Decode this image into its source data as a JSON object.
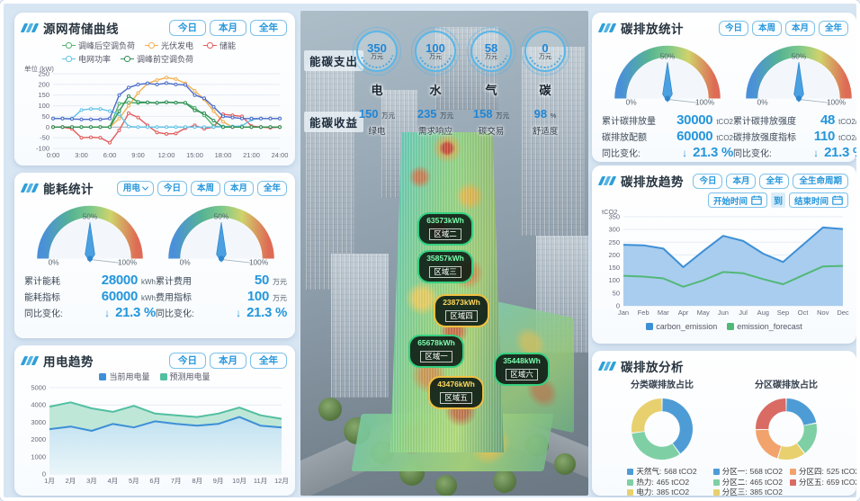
{
  "panels": {
    "curve": {
      "title": "源网荷储曲线",
      "buttons": [
        "今日",
        "本月",
        "全年"
      ],
      "unit_label": "单位 (kW)"
    },
    "energy": {
      "title": "能耗统计",
      "dropdown_label": "用电",
      "buttons": [
        "今日",
        "本周",
        "本月",
        "全年"
      ],
      "gauges": [
        {
          "pct": [
            "0%",
            "50%",
            "100%"
          ],
          "stats": [
            {
              "label": "累计能耗",
              "value": "28000",
              "unit": "kWh"
            },
            {
              "label": "能耗指标",
              "value": "60000",
              "unit": "kWh"
            }
          ],
          "change": {
            "label": "同比变化:",
            "arrow": "↓",
            "value": "21.3 %"
          }
        },
        {
          "pct": [
            "0%",
            "50%",
            "100%"
          ],
          "stats": [
            {
              "label": "累计费用",
              "value": "50",
              "unit": "万元"
            },
            {
              "label": "费用指标",
              "value": "100",
              "unit": "万元"
            }
          ],
          "change": {
            "label": "同比变化:",
            "arrow": "↓",
            "value": "21.3 %"
          }
        }
      ]
    },
    "usage": {
      "title": "用电趋势",
      "buttons": [
        "今日",
        "本月",
        "全年"
      ]
    },
    "carbon_stats": {
      "title": "碳排放统计",
      "buttons": [
        "今日",
        "本周",
        "本月",
        "全年"
      ],
      "gauges": [
        {
          "pct": [
            "0%",
            "50%",
            "100%"
          ],
          "stats": [
            {
              "label": "累计碳排放量",
              "value": "30000",
              "unit": "tCO2"
            },
            {
              "label": "碳排放配额",
              "value": "60000",
              "unit": "tCO2"
            }
          ],
          "change": {
            "label": "同比变化:",
            "arrow": "↓",
            "value": "21.3 %"
          }
        },
        {
          "pct": [
            "0%",
            "50%",
            "100%"
          ],
          "stats": [
            {
              "label": "累计碳排放强度",
              "value": "48",
              "unit": "tCO2/㎡"
            },
            {
              "label": "碳排放强度指标",
              "value": "110",
              "unit": "tCO2/㎡"
            }
          ],
          "change": {
            "label": "同比变化:",
            "arrow": "↓",
            "value": "21.3 %"
          }
        }
      ]
    },
    "carbon_trend": {
      "title": "碳排放趋势",
      "buttons": [
        "今日",
        "本月",
        "全年",
        "全生命周期"
      ],
      "date_start": "开始时间",
      "date_to": "到",
      "date_end": "结束时间",
      "ylabel": "tCO2"
    },
    "carbon_analysis": {
      "title": "碳排放分析",
      "left_title": "分类碳排放占比",
      "right_title": "分区碳排放占比",
      "left_legend": [
        {
          "label": "天然气:",
          "value": "568 tCO2",
          "color": "#4e9cd5"
        },
        {
          "label": "热力:",
          "value": "465 tCO2",
          "color": "#7fcfa5"
        },
        {
          "label": "电力:",
          "value": "385 tCO2",
          "color": "#e8d06e"
        }
      ],
      "right_legend_col1": [
        {
          "label": "分区一:",
          "value": "568 tCO2",
          "color": "#4e9cd5"
        },
        {
          "label": "分区二:",
          "value": "465 tCO2",
          "color": "#7fcfa5"
        },
        {
          "label": "分区三:",
          "value": "385 tCO2",
          "color": "#e8d06e"
        }
      ],
      "right_legend_col2": [
        {
          "label": "分区四:",
          "value": "525 tCO2",
          "color": "#f2a36c"
        },
        {
          "label": "分区五:",
          "value": "659 tCO2",
          "color": "#d96a64"
        }
      ]
    }
  },
  "center": {
    "expense_label": "能碳支出",
    "income_label": "能碳收益",
    "expense_items": [
      {
        "value": "350",
        "unit": "万元",
        "name": "电"
      },
      {
        "value": "100",
        "unit": "万元",
        "name": "水"
      },
      {
        "value": "58",
        "unit": "万元",
        "name": "气"
      },
      {
        "value": "0",
        "unit": "万元",
        "name": "碳"
      }
    ],
    "income_items": [
      {
        "value": "150",
        "unit": "万元",
        "name": "绿电"
      },
      {
        "value": "235",
        "unit": "万元",
        "name": "需求响应"
      },
      {
        "value": "158",
        "unit": "万元",
        "name": "碳交易"
      },
      {
        "value": "98",
        "unit": "%",
        "name": "舒适度"
      }
    ],
    "zone_badges": [
      {
        "value": "63573kWh",
        "name": "区域二",
        "color": "green"
      },
      {
        "value": "35857kWh",
        "name": "区域三",
        "color": "green"
      },
      {
        "value": "23873kWh",
        "name": "区域四",
        "color": "yellow"
      },
      {
        "value": "65678kWh",
        "name": "区域一",
        "color": "green"
      },
      {
        "value": "35448kWh",
        "name": "区域六",
        "color": "green"
      },
      {
        "value": "43476kWh",
        "name": "区域五",
        "color": "yellow"
      }
    ]
  },
  "chart_data": [
    {
      "id": "source_grid_curve",
      "type": "line",
      "title": "源网荷储曲线",
      "ylabel": "单位 (kW)",
      "ylim": [
        -100,
        250
      ],
      "yticks": [
        250,
        200,
        150,
        100,
        50,
        0,
        -50,
        -100
      ],
      "x": [
        0,
        1,
        2,
        3,
        4,
        5,
        6,
        7,
        8,
        9,
        10,
        11,
        12,
        13,
        14,
        15,
        16,
        17,
        18,
        19,
        20,
        21,
        22,
        23,
        24
      ],
      "xtick_labels": [
        "0:00",
        "3:00",
        "6:00",
        "9:00",
        "12:00",
        "15:00",
        "18:00",
        "21:00",
        "24:00"
      ],
      "series": [
        {
          "name": "调峰后空调负荷",
          "color": "#4db36a",
          "values": [
            0,
            0,
            0,
            0,
            0,
            0,
            0,
            110,
            115,
            113,
            115,
            113,
            116,
            115,
            113,
            90,
            55,
            5,
            0,
            0,
            0,
            0,
            0,
            0,
            0
          ]
        },
        {
          "name": "光伏发电",
          "color": "#f2b04e",
          "values": [
            0,
            0,
            0,
            0,
            0,
            0,
            0,
            40,
            100,
            160,
            205,
            220,
            232,
            225,
            205,
            170,
            130,
            75,
            25,
            0,
            0,
            0,
            0,
            0,
            0
          ]
        },
        {
          "name": "储能",
          "color": "#e25b5b",
          "values": [
            0,
            0,
            -8,
            -50,
            -48,
            -50,
            -73,
            -15,
            65,
            45,
            8,
            -25,
            -32,
            -30,
            -5,
            8,
            -8,
            0,
            60,
            55,
            50,
            5,
            0,
            -3,
            0
          ]
        },
        {
          "name": "电网功率",
          "color": "#62c3e8",
          "values": [
            40,
            40,
            40,
            80,
            85,
            85,
            75,
            60,
            3,
            0,
            0,
            0,
            0,
            0,
            0,
            0,
            0,
            0,
            3,
            3,
            5,
            35,
            40,
            40,
            40
          ]
        },
        {
          "name": "调峰前空调负荷",
          "color": "#2f8f55",
          "values": [
            0,
            0,
            0,
            0,
            0,
            0,
            0,
            75,
            145,
            118,
            116,
            114,
            117,
            114,
            114,
            78,
            65,
            30,
            0,
            0,
            0,
            0,
            0,
            0,
            0
          ]
        },
        {
          "name": "",
          "color": "#4b6bc8",
          "legend": false,
          "values": [
            40,
            40,
            38,
            36,
            36,
            36,
            40,
            150,
            185,
            200,
            205,
            200,
            206,
            200,
            198,
            150,
            135,
            95,
            50,
            45,
            40,
            40,
            40,
            40,
            40
          ]
        }
      ]
    },
    {
      "id": "usage_trend",
      "type": "area",
      "title": "用电趋势",
      "categories": [
        "1月",
        "2月",
        "3月",
        "4月",
        "5月",
        "6月",
        "7月",
        "8月",
        "9月",
        "10月",
        "11月",
        "12月"
      ],
      "ylim": [
        0,
        5000
      ],
      "yticks": [
        5000,
        4000,
        3000,
        2000,
        1000,
        0
      ],
      "series": [
        {
          "name": "当前用电量",
          "color": "#3d8fd6",
          "fill": "#bfe0f2",
          "values": [
            2600,
            2750,
            2500,
            2900,
            2700,
            3050,
            2900,
            2800,
            2900,
            3300,
            2800,
            2700
          ]
        },
        {
          "name": "预测用电量",
          "color": "#52bfa0",
          "fill": "#bfe7d8",
          "values": [
            3900,
            4150,
            3800,
            3600,
            3950,
            3500,
            3400,
            3300,
            3500,
            3850,
            3400,
            3200
          ]
        }
      ]
    },
    {
      "id": "carbon_trend",
      "type": "area",
      "title": "碳排放趋势",
      "ylabel": "tCO2",
      "categories": [
        "Jan",
        "Feb",
        "Mar",
        "Apr",
        "May",
        "Jun",
        "Jul",
        "Aug",
        "Sep",
        "Oct",
        "Nov",
        "Dec"
      ],
      "ylim": [
        0,
        350
      ],
      "yticks": [
        350,
        300,
        250,
        200,
        150,
        100,
        50,
        0
      ],
      "series": [
        {
          "name": "carbon_emission",
          "color": "#3d8fd6",
          "fill": "#a9cdee",
          "values": [
            240,
            238,
            225,
            152,
            215,
            275,
            255,
            205,
            172,
            240,
            308,
            302
          ]
        },
        {
          "name": "emission_forecast",
          "color": "#52b878",
          "fill": "#9bd3aa",
          "values": [
            118,
            115,
            108,
            75,
            100,
            133,
            128,
            105,
            85,
            120,
            155,
            157
          ]
        }
      ]
    },
    {
      "id": "category_share",
      "type": "pie",
      "title": "分类碳排放占比",
      "unit": "tCO2",
      "slices": [
        {
          "label": "天然气",
          "value": 568,
          "color": "#4e9cd5"
        },
        {
          "label": "热力",
          "value": 465,
          "color": "#7fcfa5"
        },
        {
          "label": "电力",
          "value": 385,
          "color": "#e8d06e"
        }
      ]
    },
    {
      "id": "zone_share",
      "type": "pie",
      "title": "分区碳排放占比",
      "unit": "tCO2",
      "slices": [
        {
          "label": "分区一",
          "value": 568,
          "color": "#4e9cd5"
        },
        {
          "label": "分区二",
          "value": 465,
          "color": "#7fcfa5"
        },
        {
          "label": "分区三",
          "value": 385,
          "color": "#e8d06e"
        },
        {
          "label": "分区四",
          "value": 525,
          "color": "#f2a36c"
        },
        {
          "label": "分区五",
          "value": 659,
          "color": "#d96a64"
        }
      ]
    }
  ]
}
